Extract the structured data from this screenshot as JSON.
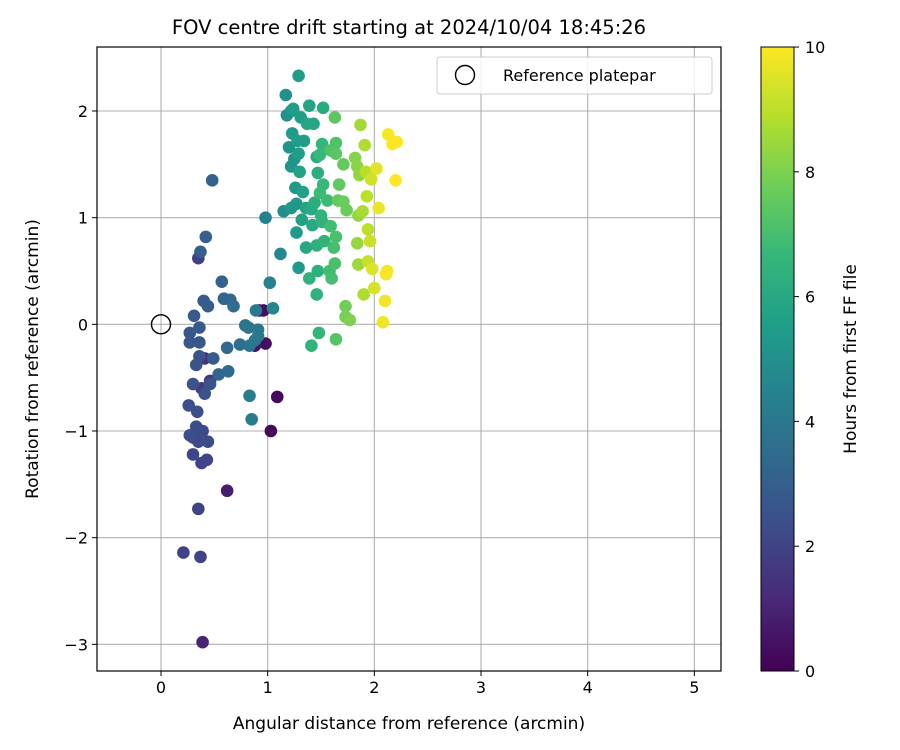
{
  "chart_data": {
    "type": "scatter",
    "title": "FOV centre drift starting at 2024/10/04 18:45:26",
    "xlabel": "Angular distance from reference (arcmin)",
    "ylabel": "Rotation from reference (arcmin)",
    "xlim": [
      -0.6,
      5.25
    ],
    "ylim": [
      -3.25,
      2.6
    ],
    "xticks": [
      0,
      1,
      2,
      3,
      4,
      5
    ],
    "xtick_labels": [
      "0",
      "1",
      "2",
      "3",
      "4",
      "5"
    ],
    "yticks": [
      -3,
      -2,
      -1,
      0,
      1,
      2
    ],
    "ytick_labels": [
      "−3",
      "−2",
      "−1",
      "0",
      "1",
      "2"
    ],
    "grid": true,
    "legend": {
      "position": "top-right",
      "entries": [
        "Reference platepar"
      ]
    },
    "reference_point": {
      "x": 0,
      "y": 0,
      "label": "Reference platepar"
    },
    "colorbar": {
      "label": "Hours from first FF file",
      "range": [
        0,
        10
      ],
      "ticks": [
        0,
        2,
        4,
        6,
        8,
        10
      ],
      "tick_labels": [
        "0",
        "2",
        "4",
        "6",
        "8",
        "10"
      ],
      "colormap": "viridis",
      "stops": [
        "#440154",
        "#482878",
        "#3e4a89",
        "#31688e",
        "#26828e",
        "#1f9e89",
        "#35b779",
        "#6ece58",
        "#b5de2b",
        "#fde725"
      ]
    },
    "points": [
      {
        "x": 1.09,
        "y": -0.68,
        "t": 0.2
      },
      {
        "x": 1.03,
        "y": -1.0,
        "t": 0.2
      },
      {
        "x": 0.92,
        "y": 0.13,
        "t": 0.3
      },
      {
        "x": 0.96,
        "y": 0.13,
        "t": 0.4
      },
      {
        "x": 0.98,
        "y": -0.18,
        "t": 0.4
      },
      {
        "x": 0.88,
        "y": -0.2,
        "t": 0.5
      },
      {
        "x": 0.62,
        "y": -1.56,
        "t": 0.8
      },
      {
        "x": 0.39,
        "y": -2.98,
        "t": 1.0
      },
      {
        "x": 0.41,
        "y": -0.32,
        "t": 1.4
      },
      {
        "x": 0.46,
        "y": -0.53,
        "t": 1.6
      },
      {
        "x": 0.38,
        "y": -0.6,
        "t": 1.7
      },
      {
        "x": 0.35,
        "y": 0.62,
        "t": 1.9
      },
      {
        "x": 0.21,
        "y": -2.14,
        "t": 2.0
      },
      {
        "x": 0.37,
        "y": -2.18,
        "t": 2.0
      },
      {
        "x": 0.35,
        "y": -1.73,
        "t": 2.0
      },
      {
        "x": 0.38,
        "y": -1.3,
        "t": 2.0
      },
      {
        "x": 0.43,
        "y": -1.27,
        "t": 2.1
      },
      {
        "x": 0.3,
        "y": -1.22,
        "t": 2.1
      },
      {
        "x": 0.3,
        "y": -1.06,
        "t": 2.2
      },
      {
        "x": 0.35,
        "y": -1.1,
        "t": 2.2
      },
      {
        "x": 0.44,
        "y": -1.1,
        "t": 2.3
      },
      {
        "x": 0.39,
        "y": -1.0,
        "t": 2.3
      },
      {
        "x": 0.33,
        "y": -0.96,
        "t": 2.3
      },
      {
        "x": 0.27,
        "y": -1.04,
        "t": 2.4
      },
      {
        "x": 0.34,
        "y": -0.82,
        "t": 2.4
      },
      {
        "x": 0.26,
        "y": -0.76,
        "t": 2.4
      },
      {
        "x": 0.3,
        "y": -0.56,
        "t": 2.5
      },
      {
        "x": 0.41,
        "y": -0.65,
        "t": 2.5
      },
      {
        "x": 0.46,
        "y": -0.56,
        "t": 2.6
      },
      {
        "x": 0.33,
        "y": -0.38,
        "t": 2.6
      },
      {
        "x": 0.36,
        "y": -0.3,
        "t": 2.6
      },
      {
        "x": 0.36,
        "y": -0.17,
        "t": 2.7
      },
      {
        "x": 0.27,
        "y": -0.17,
        "t": 2.7
      },
      {
        "x": 0.27,
        "y": -0.08,
        "t": 2.7
      },
      {
        "x": 0.36,
        "y": -0.03,
        "t": 2.8
      },
      {
        "x": 0.31,
        "y": 0.08,
        "t": 2.8
      },
      {
        "x": 0.4,
        "y": 0.22,
        "t": 2.8
      },
      {
        "x": 0.44,
        "y": 0.17,
        "t": 2.9
      },
      {
        "x": 0.49,
        "y": -0.32,
        "t": 2.9
      },
      {
        "x": 0.37,
        "y": 0.68,
        "t": 3.0
      },
      {
        "x": 0.42,
        "y": 0.82,
        "t": 3.0
      },
      {
        "x": 0.57,
        "y": 0.4,
        "t": 3.1
      },
      {
        "x": 0.48,
        "y": 1.35,
        "t": 3.1
      },
      {
        "x": 0.59,
        "y": 0.24,
        "t": 3.2
      },
      {
        "x": 0.65,
        "y": 0.23,
        "t": 3.3
      },
      {
        "x": 0.54,
        "y": -0.47,
        "t": 3.3
      },
      {
        "x": 0.63,
        "y": -0.44,
        "t": 3.4
      },
      {
        "x": 0.62,
        "y": -0.22,
        "t": 3.4
      },
      {
        "x": 0.68,
        "y": 0.17,
        "t": 3.5
      },
      {
        "x": 0.74,
        "y": -0.19,
        "t": 3.6
      },
      {
        "x": 0.79,
        "y": -0.01,
        "t": 3.8
      },
      {
        "x": 0.82,
        "y": -0.03,
        "t": 3.9
      },
      {
        "x": 0.83,
        "y": -0.2,
        "t": 3.9
      },
      {
        "x": 0.88,
        "y": -0.15,
        "t": 4.0
      },
      {
        "x": 0.91,
        "y": -0.05,
        "t": 4.0
      },
      {
        "x": 0.91,
        "y": -0.11,
        "t": 4.1
      },
      {
        "x": 0.89,
        "y": 0.13,
        "t": 4.1
      },
      {
        "x": 0.83,
        "y": -0.67,
        "t": 4.2
      },
      {
        "x": 0.85,
        "y": -0.89,
        "t": 4.2
      },
      {
        "x": 0.98,
        "y": 1.0,
        "t": 4.4
      },
      {
        "x": 1.02,
        "y": 0.39,
        "t": 4.5
      },
      {
        "x": 1.05,
        "y": 0.15,
        "t": 4.6
      },
      {
        "x": 1.12,
        "y": 0.66,
        "t": 4.7
      },
      {
        "x": 1.15,
        "y": 1.06,
        "t": 4.9
      },
      {
        "x": 1.18,
        "y": 1.96,
        "t": 5.0
      },
      {
        "x": 1.17,
        "y": 2.15,
        "t": 5.0
      },
      {
        "x": 1.22,
        "y": 2.0,
        "t": 5.1
      },
      {
        "x": 1.2,
        "y": 1.66,
        "t": 5.1
      },
      {
        "x": 1.25,
        "y": 1.55,
        "t": 5.2
      },
      {
        "x": 1.22,
        "y": 1.48,
        "t": 5.2
      },
      {
        "x": 1.26,
        "y": 1.28,
        "t": 5.3
      },
      {
        "x": 1.27,
        "y": 1.13,
        "t": 5.3
      },
      {
        "x": 1.22,
        "y": 1.09,
        "t": 5.3
      },
      {
        "x": 1.27,
        "y": 0.86,
        "t": 5.4
      },
      {
        "x": 1.29,
        "y": 0.53,
        "t": 5.4
      },
      {
        "x": 1.23,
        "y": 1.79,
        "t": 5.4
      },
      {
        "x": 1.24,
        "y": 2.02,
        "t": 5.5
      },
      {
        "x": 1.29,
        "y": 2.33,
        "t": 5.5
      },
      {
        "x": 1.31,
        "y": 1.94,
        "t": 5.5
      },
      {
        "x": 1.29,
        "y": 1.6,
        "t": 5.6
      },
      {
        "x": 1.28,
        "y": 1.72,
        "t": 5.6
      },
      {
        "x": 1.34,
        "y": 1.72,
        "t": 5.6
      },
      {
        "x": 1.3,
        "y": 1.43,
        "t": 5.7
      },
      {
        "x": 1.33,
        "y": 1.24,
        "t": 5.7
      },
      {
        "x": 1.32,
        "y": 0.98,
        "t": 5.7
      },
      {
        "x": 1.36,
        "y": 1.09,
        "t": 5.8
      },
      {
        "x": 1.39,
        "y": 2.05,
        "t": 5.8
      },
      {
        "x": 1.43,
        "y": 1.88,
        "t": 5.9
      },
      {
        "x": 1.37,
        "y": 1.88,
        "t": 5.9
      },
      {
        "x": 1.36,
        "y": 0.72,
        "t": 5.9
      },
      {
        "x": 1.42,
        "y": 0.93,
        "t": 6.0
      },
      {
        "x": 1.41,
        "y": 1.08,
        "t": 6.0
      },
      {
        "x": 1.46,
        "y": 1.57,
        "t": 6.1
      },
      {
        "x": 1.52,
        "y": 2.03,
        "t": 6.1
      },
      {
        "x": 1.47,
        "y": 1.42,
        "t": 6.2
      },
      {
        "x": 1.44,
        "y": 1.14,
        "t": 6.2
      },
      {
        "x": 1.46,
        "y": 0.74,
        "t": 6.3
      },
      {
        "x": 1.47,
        "y": 0.5,
        "t": 6.3
      },
      {
        "x": 1.46,
        "y": 0.28,
        "t": 6.4
      },
      {
        "x": 1.39,
        "y": 0.43,
        "t": 6.4
      },
      {
        "x": 1.51,
        "y": 0.96,
        "t": 6.4
      },
      {
        "x": 1.53,
        "y": 0.78,
        "t": 6.5
      },
      {
        "x": 1.5,
        "y": 1.02,
        "t": 6.5
      },
      {
        "x": 1.41,
        "y": -0.2,
        "t": 6.5
      },
      {
        "x": 1.48,
        "y": -0.08,
        "t": 6.6
      },
      {
        "x": 1.51,
        "y": 1.69,
        "t": 6.6
      },
      {
        "x": 1.49,
        "y": 1.59,
        "t": 6.7
      },
      {
        "x": 1.52,
        "y": 1.31,
        "t": 6.7
      },
      {
        "x": 1.49,
        "y": 1.23,
        "t": 6.8
      },
      {
        "x": 1.56,
        "y": 1.16,
        "t": 6.8
      },
      {
        "x": 1.59,
        "y": 0.92,
        "t": 6.9
      },
      {
        "x": 1.58,
        "y": 0.5,
        "t": 6.9
      },
      {
        "x": 1.6,
        "y": 0.43,
        "t": 7.0
      },
      {
        "x": 1.62,
        "y": 0.72,
        "t": 7.0
      },
      {
        "x": 1.63,
        "y": 0.57,
        "t": 7.1
      },
      {
        "x": 1.64,
        "y": 0.82,
        "t": 7.1
      },
      {
        "x": 1.64,
        "y": 1.7,
        "t": 7.2
      },
      {
        "x": 1.59,
        "y": 1.63,
        "t": 7.2
      },
      {
        "x": 1.64,
        "y": -0.14,
        "t": 7.3
      },
      {
        "x": 1.63,
        "y": 1.94,
        "t": 7.4
      },
      {
        "x": 1.64,
        "y": 1.6,
        "t": 7.4
      },
      {
        "x": 1.67,
        "y": 1.31,
        "t": 7.5
      },
      {
        "x": 1.66,
        "y": 1.16,
        "t": 7.6
      },
      {
        "x": 1.71,
        "y": 1.5,
        "t": 7.6
      },
      {
        "x": 1.71,
        "y": 1.15,
        "t": 7.7
      },
      {
        "x": 1.74,
        "y": 1.07,
        "t": 7.7
      },
      {
        "x": 1.73,
        "y": 0.17,
        "t": 7.8
      },
      {
        "x": 1.73,
        "y": 0.07,
        "t": 7.9
      },
      {
        "x": 1.77,
        "y": 0.04,
        "t": 8.0
      },
      {
        "x": 1.82,
        "y": 1.56,
        "t": 8.1
      },
      {
        "x": 1.84,
        "y": 1.48,
        "t": 8.2
      },
      {
        "x": 1.86,
        "y": 1.4,
        "t": 8.3
      },
      {
        "x": 1.85,
        "y": 1.02,
        "t": 8.4
      },
      {
        "x": 1.84,
        "y": 0.76,
        "t": 8.4
      },
      {
        "x": 1.85,
        "y": 0.56,
        "t": 8.5
      },
      {
        "x": 1.87,
        "y": 1.87,
        "t": 8.6
      },
      {
        "x": 1.89,
        "y": 1.06,
        "t": 8.7
      },
      {
        "x": 1.9,
        "y": 0.28,
        "t": 8.8
      },
      {
        "x": 1.91,
        "y": 1.68,
        "t": 8.8
      },
      {
        "x": 1.92,
        "y": 1.43,
        "t": 8.9
      },
      {
        "x": 1.93,
        "y": 1.2,
        "t": 9.0
      },
      {
        "x": 1.94,
        "y": 0.89,
        "t": 9.0
      },
      {
        "x": 1.94,
        "y": 0.59,
        "t": 9.1
      },
      {
        "x": 1.96,
        "y": 0.78,
        "t": 9.2
      },
      {
        "x": 1.97,
        "y": 1.36,
        "t": 9.3
      },
      {
        "x": 2.0,
        "y": 0.34,
        "t": 9.4
      },
      {
        "x": 1.98,
        "y": 0.52,
        "t": 9.5
      },
      {
        "x": 2.02,
        "y": 1.46,
        "t": 9.6
      },
      {
        "x": 2.04,
        "y": 1.09,
        "t": 9.7
      },
      {
        "x": 2.08,
        "y": 0.02,
        "t": 9.8
      },
      {
        "x": 2.1,
        "y": 0.22,
        "t": 9.8
      },
      {
        "x": 2.11,
        "y": 0.47,
        "t": 9.9
      },
      {
        "x": 2.12,
        "y": 0.5,
        "t": 9.9
      },
      {
        "x": 2.13,
        "y": 1.78,
        "t": 9.9
      },
      {
        "x": 2.17,
        "y": 1.69,
        "t": 10.0
      },
      {
        "x": 2.2,
        "y": 1.35,
        "t": 10.0
      },
      {
        "x": 2.21,
        "y": 1.71,
        "t": 10.0
      }
    ]
  }
}
